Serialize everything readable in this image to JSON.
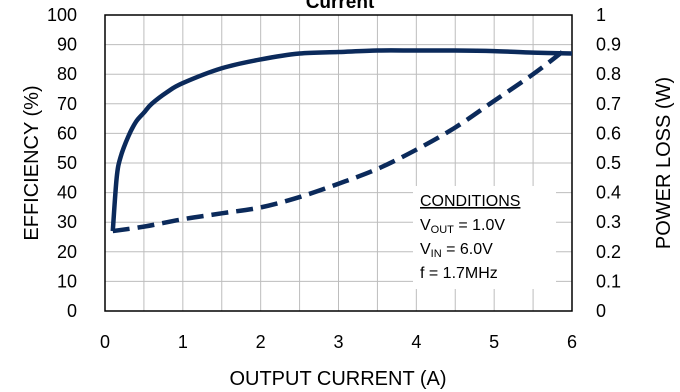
{
  "chart_data": {
    "type": "line",
    "title": "Current",
    "xlabel": "OUTPUT CURRENT (A)",
    "ylabel": "EFFICIENCY (%)",
    "y2label": "POWER LOSS (W)",
    "xlim": [
      0,
      6
    ],
    "ylim": [
      0,
      100
    ],
    "y2lim": [
      0,
      1
    ],
    "x_ticks": [
      "0",
      "1",
      "2",
      "3",
      "4",
      "5",
      "6"
    ],
    "y_ticks": [
      "0",
      "10",
      "20",
      "30",
      "40",
      "50",
      "60",
      "70",
      "80",
      "90",
      "100"
    ],
    "y2_ticks": [
      "0",
      "0.1",
      "0.2",
      "0.3",
      "0.4",
      "0.5",
      "0.6",
      "0.7",
      "0.8",
      "0.9",
      "1"
    ],
    "grid": true,
    "series": [
      {
        "axis": "left",
        "style": "solid",
        "color": "#0b2a5b",
        "x": [
          0.1,
          0.15,
          0.2,
          0.3,
          0.4,
          0.5,
          0.6,
          0.8,
          1.0,
          1.5,
          2.0,
          2.5,
          3.0,
          3.5,
          4.0,
          4.5,
          5.0,
          5.5,
          6.0
        ],
        "y": [
          27,
          45,
          52,
          59,
          64,
          67,
          70,
          74,
          77,
          82,
          85,
          87,
          87.5,
          88,
          88,
          88,
          87.8,
          87.3,
          87
        ]
      },
      {
        "axis": "right",
        "style": "dashed",
        "color": "#0b2a5b",
        "x": [
          0.1,
          0.5,
          1.0,
          1.5,
          2.0,
          2.5,
          3.0,
          3.5,
          4.0,
          4.5,
          5.0,
          5.5,
          5.9
        ],
        "y": [
          0.27,
          0.285,
          0.31,
          0.33,
          0.35,
          0.385,
          0.43,
          0.48,
          0.545,
          0.62,
          0.71,
          0.8,
          0.88
        ]
      }
    ],
    "annotation": {
      "heading": "CONDITIONS",
      "vout_main": "V",
      "vout_sub": "OUT",
      "vout_value": " = 1.0V",
      "vin_main": "V",
      "vin_sub": "IN",
      "vin_value": " = 6.0V",
      "freq": "f = 1.7MHz"
    }
  }
}
